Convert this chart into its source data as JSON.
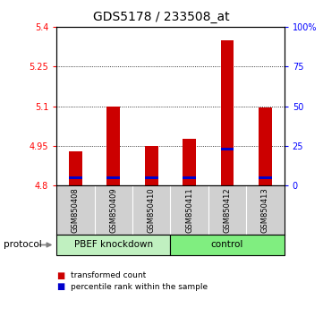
{
  "title": "GDS5178 / 233508_at",
  "samples": [
    "GSM850408",
    "GSM850409",
    "GSM850410",
    "GSM850411",
    "GSM850412",
    "GSM850413"
  ],
  "red_bar_tops": [
    4.93,
    5.1,
    4.95,
    4.975,
    5.35,
    5.095
  ],
  "blue_positions": [
    4.824,
    4.824,
    4.824,
    4.824,
    4.934,
    4.824
  ],
  "blue_height": 0.01,
  "bar_bottom": 4.8,
  "ylim_left": [
    4.8,
    5.4
  ],
  "ylim_right": [
    0,
    100
  ],
  "yticks_left": [
    4.8,
    4.95,
    5.1,
    5.25,
    5.4
  ],
  "yticks_left_labels": [
    "4.8",
    "4.95",
    "5.1",
    "5.25",
    "5.4"
  ],
  "yticks_right": [
    0,
    25,
    50,
    75,
    100
  ],
  "yticks_right_labels": [
    "0",
    "25",
    "50",
    "75",
    "100%"
  ],
  "group_spans": [
    {
      "xmin": -0.5,
      "xmax": 2.5,
      "label": "PBEF knockdown",
      "color": "#c0f0c0"
    },
    {
      "xmin": 2.5,
      "xmax": 5.5,
      "label": "control",
      "color": "#80ee80"
    }
  ],
  "protocol_label": "protocol",
  "bar_color_red": "#cc0000",
  "bar_color_blue": "#0000cc",
  "bar_width": 0.35,
  "background_color": "#ffffff",
  "plot_bg_color": "#ffffff",
  "legend_items": [
    {
      "color": "#cc0000",
      "label": "transformed count"
    },
    {
      "color": "#0000cc",
      "label": "percentile rank within the sample"
    }
  ],
  "title_fontsize": 10,
  "tick_fontsize": 7,
  "sample_fontsize": 6
}
